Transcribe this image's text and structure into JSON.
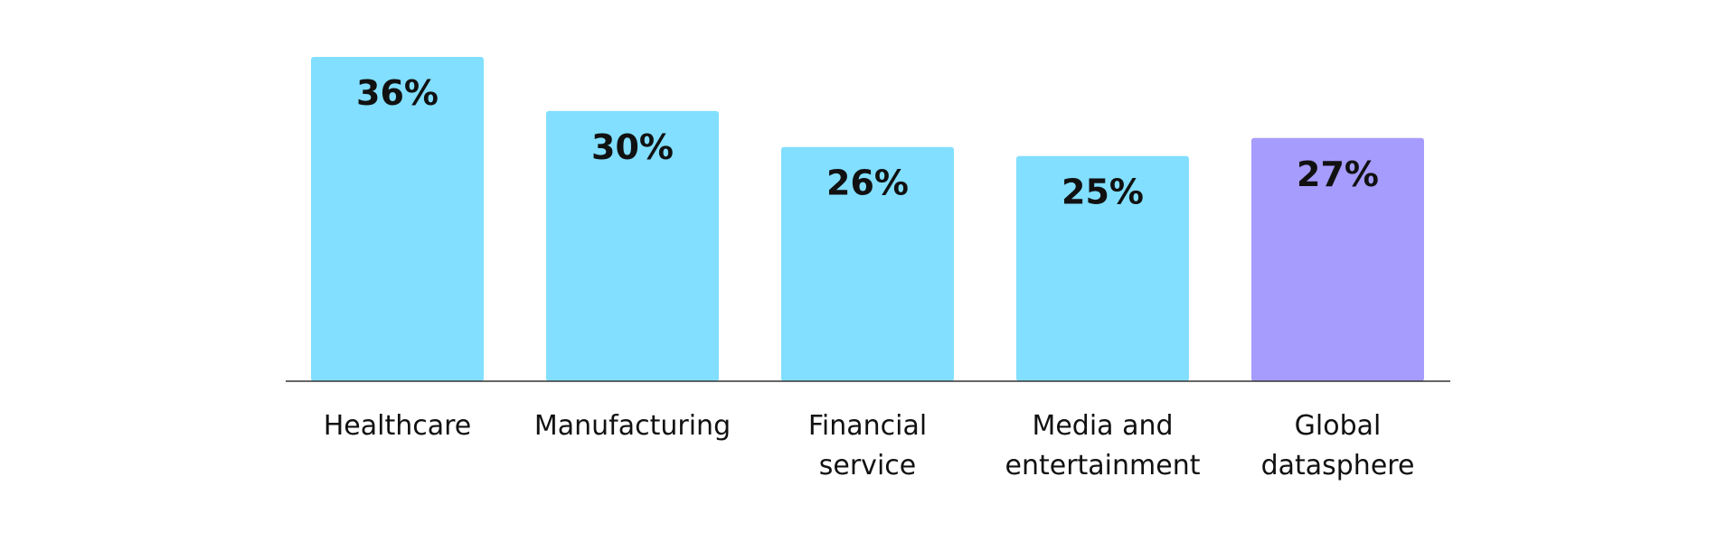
{
  "chart_data": {
    "type": "bar",
    "categories": [
      [
        "Healthcare"
      ],
      [
        "Manufacturing"
      ],
      [
        "Financial",
        "service"
      ],
      [
        "Media and",
        "entertainment"
      ],
      [
        "Global",
        "datasphere"
      ]
    ],
    "values": [
      36,
      30,
      26,
      25,
      27
    ],
    "value_labels": [
      "36%",
      "30%",
      "26%",
      "25%",
      "27%"
    ],
    "colors": [
      "#82DFFF",
      "#82DFFF",
      "#82DFFF",
      "#82DFFF",
      "#A69CFD"
    ],
    "axis_color": "#333333",
    "ylim": [
      0,
      36
    ],
    "grid": false,
    "title": "",
    "xlabel": "",
    "ylabel": ""
  }
}
